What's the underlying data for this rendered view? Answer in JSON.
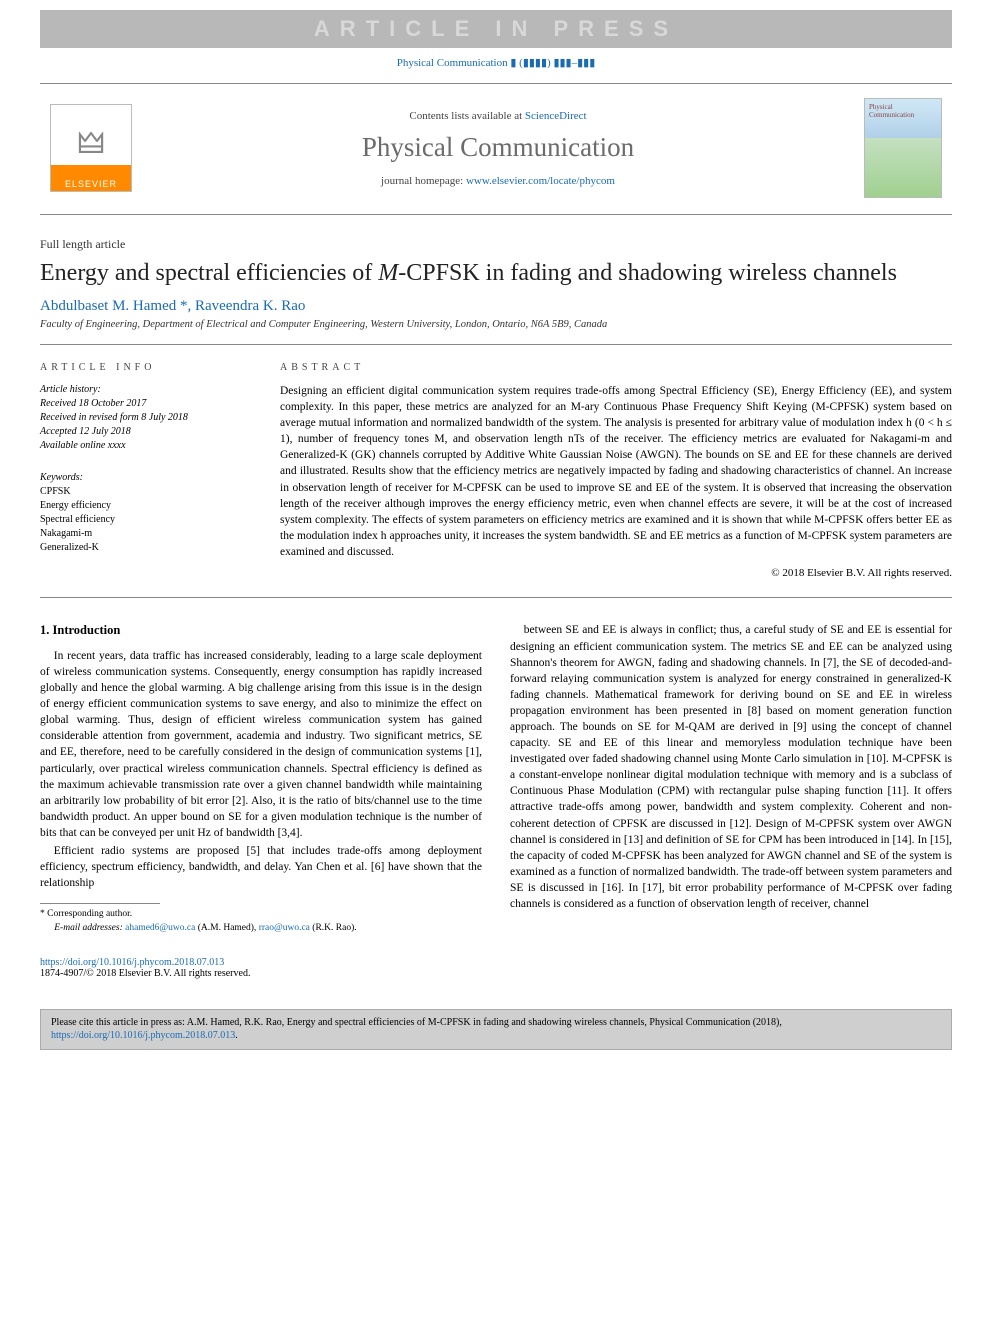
{
  "watermark": "ARTICLE IN PRESS",
  "journal_ref": "Physical Communication ▮ (▮▮▮▮) ▮▮▮–▮▮▮",
  "header": {
    "contents_prefix": "Contents lists available at ",
    "contents_link": "ScienceDirect",
    "journal_name": "Physical Communication",
    "homepage_prefix": "journal homepage: ",
    "homepage_link": "www.elsevier.com/locate/phycom",
    "elsevier_label": "ELSEVIER",
    "cover_label": "Physical Communication"
  },
  "article": {
    "type": "Full length article",
    "title_before": "Energy and spectral efficiencies of ",
    "title_ital": "M",
    "title_after": "-CPFSK in fading and shadowing wireless channels",
    "authors": {
      "a1": "Abdulbaset M. Hamed",
      "sep": " *, ",
      "a2": "Raveendra K. Rao"
    },
    "affiliation": "Faculty of Engineering, Department of Electrical and Computer Engineering, Western University, London, Ontario, N6A 5B9, Canada"
  },
  "info": {
    "head": "ARTICLE INFO",
    "history_label": "Article history:",
    "received": "Received 18 October 2017",
    "revised": "Received in revised form 8 July 2018",
    "accepted": "Accepted 12 July 2018",
    "online": "Available online xxxx",
    "keywords_label": "Keywords:",
    "kw1": "CPFSK",
    "kw2": "Energy efficiency",
    "kw3": "Spectral efficiency",
    "kw4": "Nakagami-m",
    "kw5": "Generalized-K"
  },
  "abstract": {
    "head": "ABSTRACT",
    "body": "Designing an efficient digital communication system requires trade-offs among Spectral Efficiency (SE), Energy Efficiency (EE), and system complexity. In this paper, these metrics are analyzed for an M-ary Continuous Phase Frequency Shift Keying (M-CPFSK) system based on average mutual information and normalized bandwidth of the system. The analysis is presented for arbitrary value of modulation index h (0 < h ≤ 1), number of frequency tones M, and observation length nTs of the receiver. The efficiency metrics are evaluated for Nakagami-m and Generalized-K (GK) channels corrupted by Additive White Gaussian Noise (AWGN). The bounds on SE and EE for these channels are derived and illustrated. Results show that the efficiency metrics are negatively impacted by fading and shadowing characteristics of channel. An increase in observation length of receiver for M-CPFSK can be used to improve SE and EE of the system. It is observed that increasing the observation length of the receiver although improves the energy efficiency metric, even when channel effects are severe, it will be at the cost of increased system complexity. The effects of system parameters on efficiency metrics are examined and it is shown that while M-CPFSK offers better EE as the modulation index h approaches unity, it increases the system bandwidth. SE and EE metrics as a function of M-CPFSK system parameters are examined and discussed.",
    "copyright": "© 2018 Elsevier B.V. All rights reserved."
  },
  "intro": {
    "head": "1. Introduction",
    "p1": "In recent years, data traffic has increased considerably, leading to a large scale deployment of wireless communication systems. Consequently, energy consumption has rapidly increased globally and hence the global warming. A big challenge arising from this issue is in the design of energy efficient communication systems to save energy, and also to minimize the effect on global warming. Thus, design of efficient wireless communication system has gained considerable attention from government, academia and industry. Two significant metrics, SE and EE, therefore, need to be carefully considered in the design of communication systems [1], particularly, over practical wireless communication channels. Spectral efficiency is defined as the maximum achievable transmission rate over a given channel bandwidth while maintaining an arbitrarily low probability of bit error [2]. Also, it is the ratio of bits/channel use to the time bandwidth product. An upper bound on SE for a given modulation technique is the number of bits that can be conveyed per unit Hz of bandwidth [3,4].",
    "p2": "Efficient radio systems are proposed [5] that includes trade-offs among deployment efficiency, spectrum efficiency, bandwidth, and delay. Yan Chen et al. [6] have shown that the relationship",
    "p3": "between SE and EE is always in conflict; thus, a careful study of SE and EE is essential for designing an efficient communication system. The metrics SE and EE can be analyzed using Shannon's theorem for AWGN, fading and shadowing channels. In [7], the SE of decoded-and-forward relaying communication system is analyzed for energy constrained in generalized-K fading channels. Mathematical framework for deriving bound on SE and EE in wireless propagation environment has been presented in [8] based on moment generation function approach. The bounds on SE for M-QAM are derived in [9] using the concept of channel capacity. SE and EE of this linear and memoryless modulation technique have been investigated over faded shadowing channel using Monte Carlo simulation in [10]. M-CPFSK is a constant-envelope nonlinear digital modulation technique with memory and is a subclass of Continuous Phase Modulation (CPM) with rectangular pulse shaping function [11]. It offers attractive trade-offs among power, bandwidth and system complexity. Coherent and non-coherent detection of CPFSK are discussed in [12]. Design of M-CPFSK system over AWGN channel is considered in [13] and definition of SE for CPM has been introduced in [14]. In [15], the capacity of coded M-CPFSK has been analyzed for AWGN channel and SE of the system is examined as a function of normalized bandwidth. The trade-off between system parameters and SE is discussed in [16]. In [17], bit error probability performance of M-CPFSK over fading channels is considered as a function of observation length of receiver, channel"
  },
  "footnotes": {
    "corr": "* Corresponding author.",
    "email_label": "E-mail addresses: ",
    "email1": "ahamed6@uwo.ca",
    "email1_person": " (A.M. Hamed), ",
    "email2": "rrao@uwo.ca",
    "email2_person": " (R.K. Rao)."
  },
  "doi": {
    "url": "https://doi.org/10.1016/j.phycom.2018.07.013",
    "line": "1874-4907/© 2018 Elsevier B.V. All rights reserved."
  },
  "citation": {
    "prefix": "Please cite this article in press as: A.M. Hamed, R.K. Rao, Energy and spectral efficiencies of M-CPFSK in fading and shadowing wireless channels, Physical Communication (2018), ",
    "url": "https://doi.org/10.1016/j.phycom.2018.07.013",
    "suffix": "."
  },
  "colors": {
    "link": "#1a6bb3",
    "watermark_bg": "#b8b8b8",
    "watermark_fg": "#d8d8d8",
    "elsevier_orange": "#ff8a00",
    "rule": "#888888",
    "citation_bg": "#cfcfcf"
  },
  "typography": {
    "title_fontsize": 24,
    "journal_name_fontsize": 27,
    "body_fontsize": 11.5,
    "info_fontsize": 10,
    "footnote_fontsize": 9.5
  }
}
